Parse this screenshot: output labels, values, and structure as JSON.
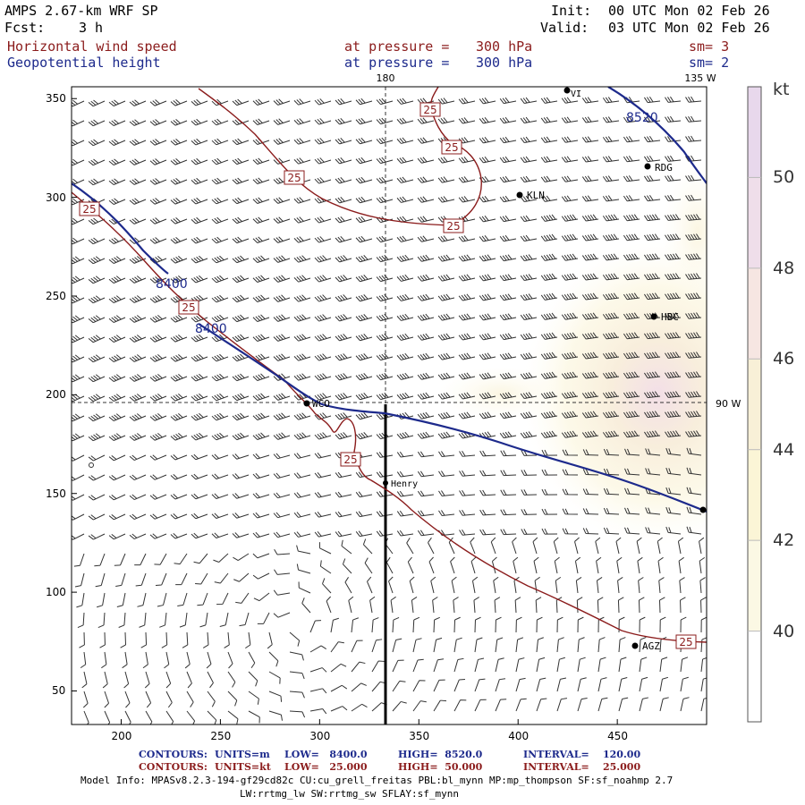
{
  "header": {
    "model_title": "AMPS 2.67-km WRF SP",
    "forecast_label": "Fcst:",
    "forecast_value": "3 h",
    "init_label": "Init:",
    "init_value": "00 UTC Mon 02 Feb 26",
    "valid_label": "Valid:",
    "valid_value": "03 UTC Mon 02 Feb 26"
  },
  "fields": [
    {
      "name": "Horizontal wind speed",
      "level_label": "at pressure =",
      "level_value": "300 hPa",
      "smoothing": "sm= 3",
      "color": "#8b1c1c"
    },
    {
      "name": "Geopotential height",
      "level_label": "at pressure =",
      "level_value": "300 hPa",
      "smoothing": "sm= 2",
      "color": "#1d2a8c"
    }
  ],
  "map_labels": {
    "meridian_180": "180",
    "meridian_135w": "135 W",
    "meridian_90w": "90 W"
  },
  "stations": [
    "KLN",
    "RDG",
    "HBC",
    "WCO",
    "Henry",
    "AGZ",
    "VI"
  ],
  "contour_labels": {
    "height_8400": "8400",
    "height_8520": "8520",
    "speed_25": "25"
  },
  "chart_data": {
    "type": "contour",
    "x_ticks": [
      "200",
      "250",
      "300",
      "350",
      "400",
      "450"
    ],
    "y_ticks": [
      "50",
      "100",
      "150",
      "200",
      "250",
      "300",
      "350"
    ],
    "x_range": [
      175,
      495
    ],
    "y_range": [
      33,
      356
    ],
    "colorbar": {
      "unit": "kt",
      "levels": [
        "40",
        "42",
        "44",
        "46",
        "48",
        "50"
      ],
      "band_colors": [
        "#fbf8e4",
        "#fbf5d6",
        "#f8f0d7",
        "#f6e6e2",
        "#efdeea",
        "#e8d8ec"
      ]
    }
  },
  "footer": {
    "contours_label": "CONTOURS:",
    "row1": {
      "units": "UNITS=m",
      "low": "LOW=   8400.0",
      "high": "HIGH=  8520.0",
      "interval": "INTERVAL=    120.00"
    },
    "row2": {
      "units": "UNITS=kt",
      "low": "LOW=   25.000",
      "high": "HIGH=  50.000",
      "interval": "INTERVAL=    25.000"
    },
    "model_info": "Model Info: MPASv8.2.3-194-gf29cd82c CU:cu_grell_freitas PBL:bl_mynn MP:mp_thompson SF:sf_noahmp 2.7",
    "model_info_2": "LW:rrtmg_lw SW:rrtmg_sw SFLAY:sf_mynn"
  },
  "colors": {
    "wind_speed": "#8b1c1c",
    "height": "#1d2a8c",
    "footer_blue": "#1d2a8c",
    "footer_red": "#8b1c1c"
  }
}
